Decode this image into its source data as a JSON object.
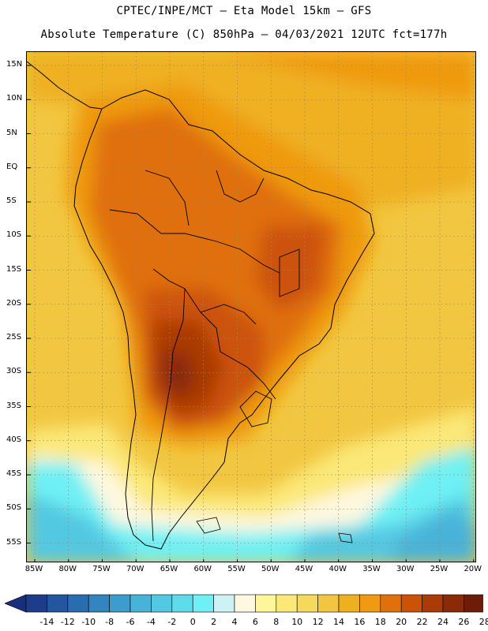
{
  "header": {
    "line1": "CPTEC/INPE/MCT —  Eta Model 15km — GFS",
    "line2": "Absolute Temperature (C) 850hPa — 04/03/2021 12UTC fct=177h"
  },
  "map": {
    "lat_labels": [
      "15N",
      "10N",
      "5N",
      "EQ",
      "5S",
      "10S",
      "15S",
      "20S",
      "25S",
      "30S",
      "35S",
      "40S",
      "45S",
      "50S",
      "55S"
    ],
    "lon_labels": [
      "85W",
      "80W",
      "75W",
      "70W",
      "65W",
      "60W",
      "55W",
      "50W",
      "45W",
      "40W",
      "35W",
      "30W",
      "25W",
      "20W"
    ],
    "lat_values": [
      15,
      10,
      5,
      0,
      -5,
      -10,
      -15,
      -20,
      -25,
      -30,
      -35,
      -40,
      -45,
      -50,
      -55
    ],
    "lon_values": [
      -85,
      -80,
      -75,
      -70,
      -65,
      -60,
      -55,
      -50,
      -45,
      -40,
      -35,
      -30,
      -25,
      -20
    ]
  },
  "legend": {
    "labels": [
      "-14",
      "-12",
      "-10",
      "-8",
      "-6",
      "-4",
      "-2",
      "0",
      "2",
      "4",
      "6",
      "8",
      "10",
      "12",
      "14",
      "16",
      "18",
      "20",
      "22",
      "24",
      "26",
      "28"
    ],
    "colors": [
      "#1e3c8c",
      "#2456a0",
      "#2a6cb0",
      "#3484c0",
      "#3d9ccc",
      "#48b2d8",
      "#52c8e2",
      "#5edcea",
      "#6ef0f4",
      "#cdf2f6",
      "#fff8e0",
      "#fff59a",
      "#fbe878",
      "#f6d85a",
      "#f2c640",
      "#efb020",
      "#ef9a10",
      "#e0700a",
      "#cc5208",
      "#ac3a06",
      "#8a2a08",
      "#6e1c0a"
    ],
    "under_color": "#1a2e80",
    "over_color": "#7a1026"
  }
}
